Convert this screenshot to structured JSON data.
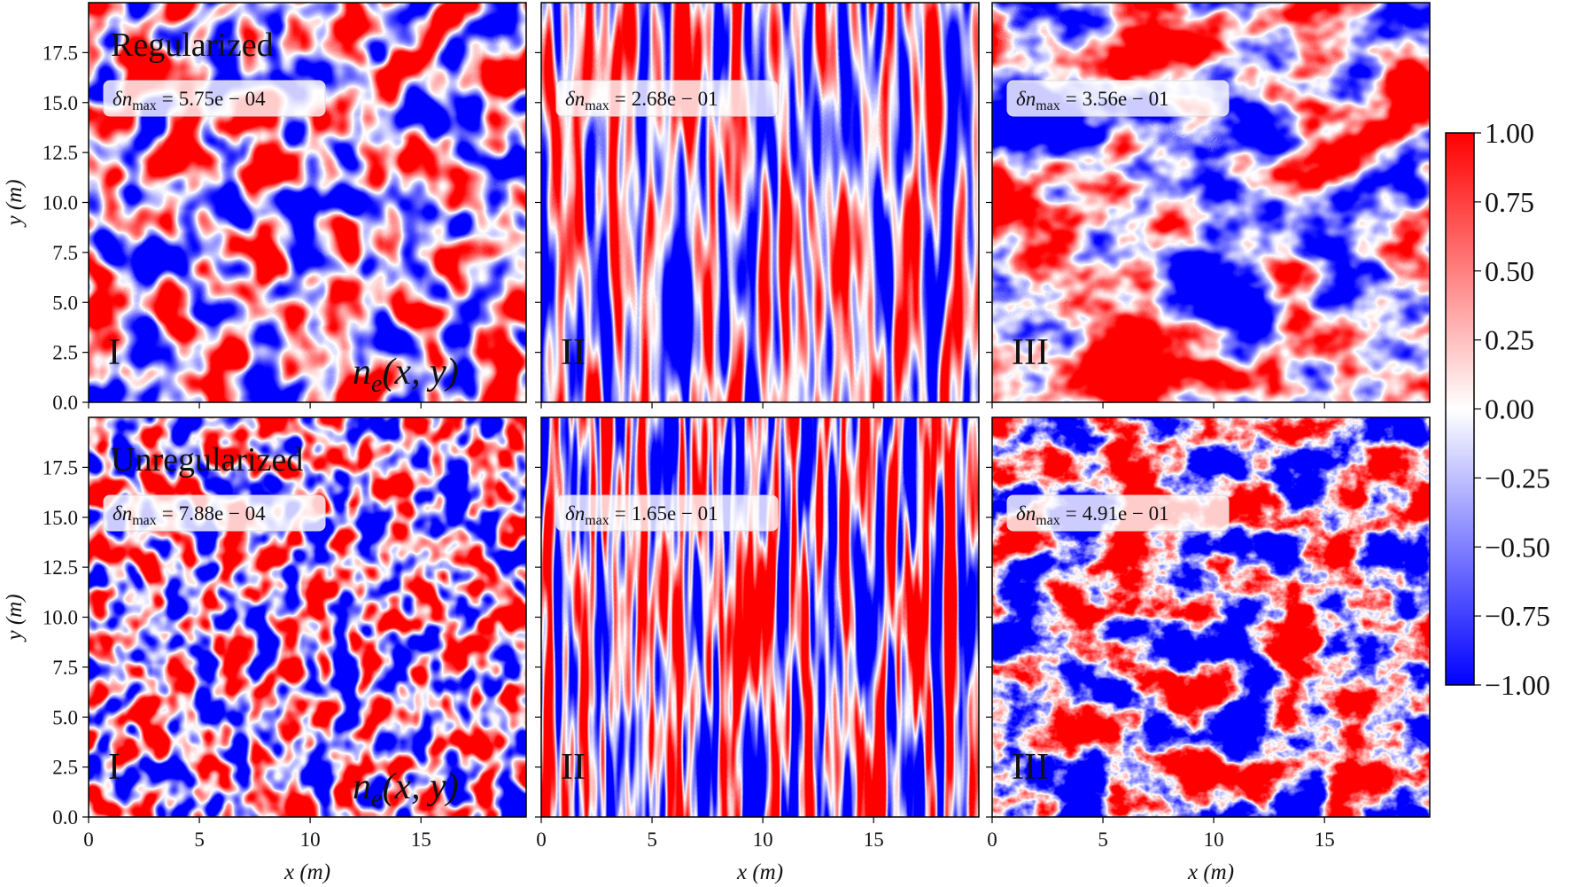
{
  "chart_data": {
    "type": "heatmap",
    "xlabel": "x (m)",
    "ylabel": "y (m)",
    "xlim": [
      0,
      19.75
    ],
    "ylim": [
      0,
      20
    ],
    "xticks": [
      0,
      5,
      10,
      15
    ],
    "yticks": [
      {
        "value": 0,
        "label": "0.0"
      },
      2.5,
      {
        "value": 5,
        "label": "5.0"
      },
      7.5,
      {
        "value": 10,
        "label": "10.0"
      },
      12.5,
      {
        "value": 15,
        "label": "15.0"
      },
      17.5
    ],
    "delta_symbol": "δn",
    "delta_subscript": "max",
    "delta_relation": "=",
    "panels": [
      {
        "title": "Regularized",
        "numeral": "I",
        "delta": {
          "value": 0.000575,
          "label": "5.75e − 04"
        },
        "field": {
          "symbol": "n",
          "subscript": "e",
          "args": "(x, y)"
        }
      },
      {
        "numeral": "II",
        "delta": {
          "value": 0.268,
          "label": "2.68e − 01"
        }
      },
      {
        "numeral": "III",
        "delta": {
          "value": 0.356,
          "label": "3.56e − 01"
        }
      },
      {
        "title": "Unregularized",
        "numeral": "I",
        "delta": {
          "value": 0.000788,
          "label": "7.88e − 04"
        },
        "field": {
          "symbol": "n",
          "subscript": "e",
          "args": "(x, y)"
        }
      },
      {
        "numeral": "II",
        "delta": {
          "value": 0.165,
          "label": "1.65e − 01"
        }
      },
      {
        "numeral": "III",
        "delta": {
          "value": 0.491,
          "label": "4.91e − 01"
        }
      }
    ],
    "colorbar": {
      "lim": [
        -1,
        1
      ],
      "colors": [
        "#0000ff",
        "#ffffff",
        "#ff0000"
      ],
      "ticks": [
        {
          "value": 1,
          "label": "1.00"
        },
        {
          "value": 0.75,
          "label": "0.75"
        },
        {
          "value": 0.5,
          "label": "0.50"
        },
        {
          "value": 0.25,
          "label": "0.25"
        },
        {
          "value": 0,
          "label": "0.00"
        },
        {
          "value": -0.25,
          "label": "−0.25"
        },
        {
          "value": -0.5,
          "label": "−0.50"
        },
        {
          "value": -0.75,
          "label": "−0.75"
        },
        {
          "value": -1,
          "label": "−1.00"
        }
      ]
    }
  }
}
